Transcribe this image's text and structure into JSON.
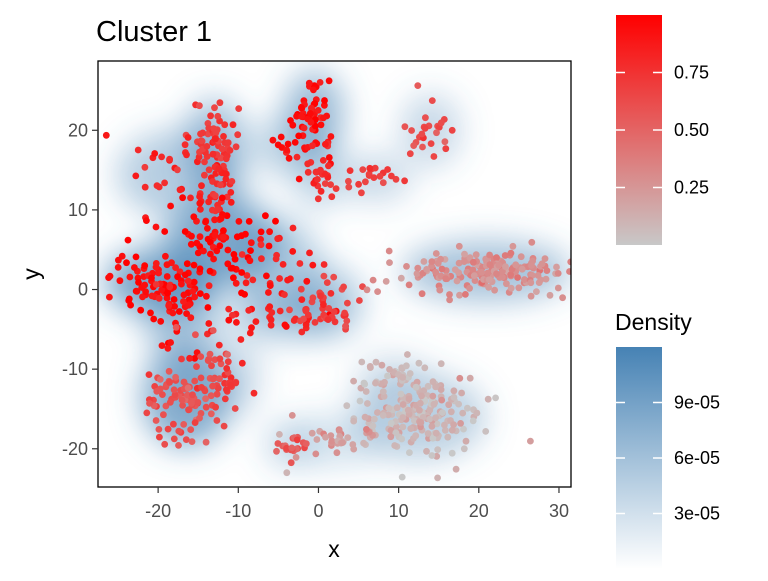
{
  "chart_data": {
    "type": "scatter",
    "title": "Cluster 1",
    "xlabel": "x",
    "ylabel": "y",
    "xlim": [
      -27.5,
      31.5
    ],
    "ylim": [
      -24.8,
      28.7
    ],
    "x_ticks": [
      -20,
      -10,
      0,
      10,
      20,
      30
    ],
    "x_tick_labels": [
      "-20",
      "-10",
      "0",
      "10",
      "20",
      "30"
    ],
    "y_ticks": [
      -20,
      -10,
      0,
      10,
      20
    ],
    "y_tick_labels": [
      "-20",
      "-10",
      "0",
      "10",
      "20"
    ],
    "grid": false,
    "point_color_scale": {
      "low_color": "#c8c8c8",
      "high_color": "#ff0000",
      "range": [
        0,
        1
      ],
      "breaks": [
        0.25,
        0.5,
        0.75
      ],
      "labels": [
        "0.25",
        "0.50",
        "0.75"
      ]
    },
    "density_legend": {
      "title": "Density",
      "low_color": "#ffffff",
      "high_color": "#4682b4",
      "range": [
        0,
        0.00012
      ],
      "breaks": [
        3e-05,
        6e-05,
        9e-05
      ],
      "labels": [
        "3e-05",
        "6e-05",
        "9e-05"
      ]
    },
    "legend_position": "right",
    "clusters": [
      {
        "cx": -18,
        "cy": 14.5,
        "sx": 3.5,
        "sy": 2.5,
        "n": 30,
        "v": 0.82
      },
      {
        "cx": -13,
        "cy": 18.5,
        "sx": 1.5,
        "sy": 2.5,
        "n": 60,
        "v": 0.72
      },
      {
        "cx": -12,
        "cy": 12.5,
        "sx": 1.0,
        "sy": 2.0,
        "n": 30,
        "v": 0.78
      },
      {
        "cx": -0.5,
        "cy": 22,
        "sx": 1.4,
        "sy": 2.5,
        "n": 55,
        "v": 0.92
      },
      {
        "cx": 0,
        "cy": 14.5,
        "sx": 1.0,
        "sy": 1.8,
        "n": 25,
        "v": 0.8
      },
      {
        "cx": -4,
        "cy": 18,
        "sx": 2.0,
        "sy": 1.5,
        "n": 15,
        "v": 0.95
      },
      {
        "cx": 7,
        "cy": 14,
        "sx": 2.0,
        "sy": 1.0,
        "n": 20,
        "v": 0.7
      },
      {
        "cx": 14,
        "cy": 20,
        "sx": 1.5,
        "sy": 2.0,
        "n": 25,
        "v": 0.6
      },
      {
        "cx": -12,
        "cy": 6,
        "sx": 3.5,
        "sy": 2.5,
        "n": 70,
        "v": 0.97
      },
      {
        "cx": -19.5,
        "cy": 1,
        "sx": 3.5,
        "sy": 1.8,
        "n": 80,
        "v": 0.93
      },
      {
        "cx": -17,
        "cy": -4,
        "sx": 2.0,
        "sy": 2.5,
        "n": 35,
        "v": 0.9
      },
      {
        "cx": -5,
        "cy": 2.5,
        "sx": 2.5,
        "sy": 3.0,
        "n": 30,
        "v": 0.86
      },
      {
        "cx": -4,
        "cy": -3.5,
        "sx": 3.5,
        "sy": 1.0,
        "n": 30,
        "v": 0.85
      },
      {
        "cx": 1,
        "cy": -1.5,
        "sx": 2.0,
        "sy": 1.8,
        "n": 45,
        "v": 0.68
      },
      {
        "cx": -16.5,
        "cy": -13.5,
        "sx": 2.5,
        "sy": 3.0,
        "n": 110,
        "v": 0.6
      },
      {
        "cx": -10.5,
        "cy": -11,
        "sx": 1.2,
        "sy": 2.0,
        "n": 20,
        "v": 0.7
      },
      {
        "cx": 21,
        "cy": 2.3,
        "sx": 5.5,
        "sy": 1.5,
        "n": 190,
        "v": 0.3
      },
      {
        "cx": 12.5,
        "cy": -16,
        "sx": 4.2,
        "sy": 2.5,
        "n": 190,
        "v": 0.1
      },
      {
        "cx": 9,
        "cy": -11,
        "sx": 2.0,
        "sy": 1.2,
        "n": 30,
        "v": 0.1
      },
      {
        "cx": 2,
        "cy": -19,
        "sx": 3.0,
        "sy": 1.2,
        "n": 30,
        "v": 0.25
      },
      {
        "cx": -3.5,
        "cy": -19.5,
        "sx": 1.2,
        "sy": 1.0,
        "n": 20,
        "v": 0.55
      }
    ]
  }
}
